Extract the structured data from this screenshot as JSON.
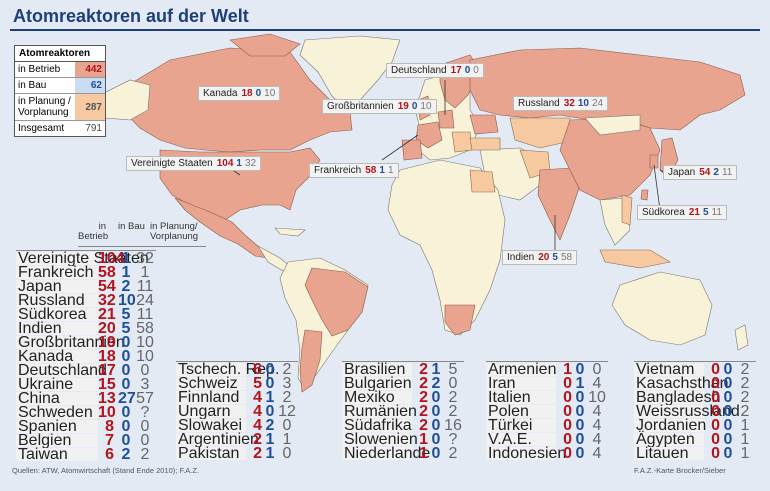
{
  "title": "Atomreaktoren auf der Welt",
  "legend": {
    "heading": "Atomreaktoren",
    "rows": [
      {
        "label": "in Betrieb",
        "value": "442"
      },
      {
        "label": "in Bau",
        "value": "62"
      },
      {
        "label": "in Planung / Vorplanung",
        "value": "287"
      },
      {
        "label": "Insgesamt",
        "value": "791"
      }
    ]
  },
  "colors": {
    "operating": "#e8a48e",
    "construction": "#f6c9a0",
    "land": "#f8f3d8",
    "water": "#e3eaf4",
    "title": "#1f3f7a"
  },
  "map_labels": [
    {
      "country": "Kanada",
      "betrieb": "18",
      "bau": "0",
      "planung": "10"
    },
    {
      "country": "Deutschland",
      "betrieb": "17",
      "bau": "0",
      "planung": "0"
    },
    {
      "country": "Großbritannien",
      "betrieb": "19",
      "bau": "0",
      "planung": "10"
    },
    {
      "country": "Russland",
      "betrieb": "32",
      "bau": "10",
      "planung": "24"
    },
    {
      "country": "Vereinigte Staaten",
      "betrieb": "104",
      "bau": "1",
      "planung": "32"
    },
    {
      "country": "Frankreich",
      "betrieb": "58",
      "bau": "1",
      "planung": "1"
    },
    {
      "country": "Japan",
      "betrieb": "54",
      "bau": "2",
      "planung": "11"
    },
    {
      "country": "Südkorea",
      "betrieb": "21",
      "bau": "5",
      "planung": "11"
    },
    {
      "country": "Indien",
      "betrieb": "20",
      "bau": "5",
      "planung": "58"
    }
  ],
  "table_header": {
    "betrieb": "in Betrieb",
    "bau": "in Bau",
    "planung": "in Planung/ Vorplanung"
  },
  "table_columns": [
    [
      {
        "country": "Vereinigte Staaten",
        "betrieb": "104",
        "bau": "1",
        "planung": "32"
      },
      {
        "country": "Frankreich",
        "betrieb": "58",
        "bau": "1",
        "planung": "1"
      },
      {
        "country": "Japan",
        "betrieb": "54",
        "bau": "2",
        "planung": "11"
      },
      {
        "country": "Russland",
        "betrieb": "32",
        "bau": "10",
        "planung": "24"
      },
      {
        "country": "Südkorea",
        "betrieb": "21",
        "bau": "5",
        "planung": "11"
      },
      {
        "country": "Indien",
        "betrieb": "20",
        "bau": "5",
        "planung": "58"
      },
      {
        "country": "Großbritannien",
        "betrieb": "19",
        "bau": "0",
        "planung": "10"
      },
      {
        "country": "Kanada",
        "betrieb": "18",
        "bau": "0",
        "planung": "10"
      },
      {
        "country": "Deutschland",
        "betrieb": "17",
        "bau": "0",
        "planung": "0"
      },
      {
        "country": "Ukraine",
        "betrieb": "15",
        "bau": "0",
        "planung": "3"
      },
      {
        "country": "China",
        "betrieb": "13",
        "bau": "27",
        "planung": "57"
      },
      {
        "country": "Schweden",
        "betrieb": "10",
        "bau": "0",
        "planung": "?"
      },
      {
        "country": "Spanien",
        "betrieb": "8",
        "bau": "0",
        "planung": "0"
      },
      {
        "country": "Belgien",
        "betrieb": "7",
        "bau": "0",
        "planung": "0"
      },
      {
        "country": "Taiwan",
        "betrieb": "6",
        "bau": "2",
        "planung": "2"
      }
    ],
    [
      {
        "country": "Tschech. Rep.",
        "betrieb": "6",
        "bau": "0",
        "planung": "2"
      },
      {
        "country": "Schweiz",
        "betrieb": "5",
        "bau": "0",
        "planung": "3"
      },
      {
        "country": "Finnland",
        "betrieb": "4",
        "bau": "1",
        "planung": "2"
      },
      {
        "country": "Ungarn",
        "betrieb": "4",
        "bau": "0",
        "planung": "12"
      },
      {
        "country": "Slowakei",
        "betrieb": "4",
        "bau": "2",
        "planung": "0"
      },
      {
        "country": "Argentinien",
        "betrieb": "2",
        "bau": "1",
        "planung": "1"
      },
      {
        "country": "Pakistan",
        "betrieb": "2",
        "bau": "1",
        "planung": "0"
      }
    ],
    [
      {
        "country": "Brasilien",
        "betrieb": "2",
        "bau": "1",
        "planung": "5"
      },
      {
        "country": "Bulgarien",
        "betrieb": "2",
        "bau": "2",
        "planung": "0"
      },
      {
        "country": "Mexiko",
        "betrieb": "2",
        "bau": "0",
        "planung": "2"
      },
      {
        "country": "Rumänien",
        "betrieb": "2",
        "bau": "0",
        "planung": "2"
      },
      {
        "country": "Südafrika",
        "betrieb": "2",
        "bau": "0",
        "planung": "16"
      },
      {
        "country": "Slowenien",
        "betrieb": "1",
        "bau": "0",
        "planung": "?"
      },
      {
        "country": "Niederlande",
        "betrieb": "1",
        "bau": "0",
        "planung": "2"
      }
    ],
    [
      {
        "country": "Armenien",
        "betrieb": "1",
        "bau": "0",
        "planung": "0"
      },
      {
        "country": "Iran",
        "betrieb": "0",
        "bau": "1",
        "planung": "4"
      },
      {
        "country": "Italien",
        "betrieb": "0",
        "bau": "0",
        "planung": "10"
      },
      {
        "country": "Polen",
        "betrieb": "0",
        "bau": "0",
        "planung": "4"
      },
      {
        "country": "Türkei",
        "betrieb": "0",
        "bau": "0",
        "planung": "4"
      },
      {
        "country": "V.A.E.",
        "betrieb": "0",
        "bau": "0",
        "planung": "4"
      },
      {
        "country": "Indonesien",
        "betrieb": "0",
        "bau": "0",
        "planung": "4"
      }
    ],
    [
      {
        "country": "Vietnam",
        "betrieb": "0",
        "bau": "0",
        "planung": "2"
      },
      {
        "country": "Kasachsthan",
        "betrieb": "0",
        "bau": "0",
        "planung": "2"
      },
      {
        "country": "Bangladesh",
        "betrieb": "0",
        "bau": "0",
        "planung": "2"
      },
      {
        "country": "Weissrussland",
        "betrieb": "0",
        "bau": "0",
        "planung": "2"
      },
      {
        "country": "Jordanien",
        "betrieb": "0",
        "bau": "0",
        "planung": "1"
      },
      {
        "country": "Ägypten",
        "betrieb": "0",
        "bau": "0",
        "planung": "1"
      },
      {
        "country": "Litauen",
        "betrieb": "0",
        "bau": "0",
        "planung": "1"
      }
    ]
  ],
  "source": "Quellen: ATW, Atomwirtschaft (Stand Ende 2010); F.A.Z.",
  "credit": "F.A.Z.-Karte Brocker/Sieber"
}
